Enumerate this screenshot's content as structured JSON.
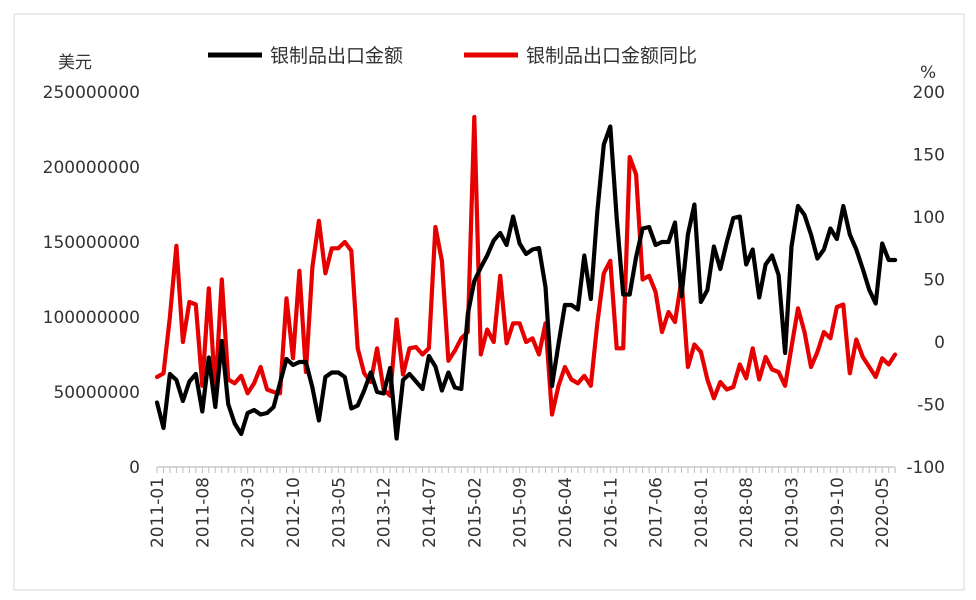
{
  "chart_data": {
    "type": "line",
    "legend": {
      "position": "top",
      "entries": [
        "银制品出口金额",
        "银制品出口金额同比"
      ]
    },
    "y_left": {
      "unit": "美元",
      "range": [
        0,
        250000000
      ],
      "ticks": [
        "250000000",
        "200000000",
        "150000000",
        "100000000",
        "50000000",
        "0"
      ]
    },
    "y_right": {
      "unit": "%",
      "range": [
        -100,
        200
      ],
      "ticks": [
        "200",
        "150",
        "100",
        "50",
        "0",
        "-50",
        "-100"
      ]
    },
    "x_tick_labels": [
      "2011-01",
      "2011-08",
      "2012-03",
      "2012-10",
      "2013-05",
      "2013-12",
      "2014-07",
      "2015-02",
      "2015-09",
      "2016-04",
      "2016-11",
      "2017-06",
      "2018-01",
      "2018-08",
      "2019-03",
      "2019-10",
      "2020-05"
    ],
    "grid": false,
    "series": [
      {
        "name": "银制品出口金额",
        "axis": "left",
        "color": "#000000",
        "values": [
          43000000,
          26000000,
          62000000,
          58000000,
          44000000,
          57000000,
          62000000,
          37000000,
          73000000,
          40000000,
          84000000,
          42000000,
          29000000,
          22000000,
          36000000,
          38000000,
          35000000,
          36000000,
          40000000,
          56000000,
          72000000,
          68000000,
          70000000,
          70000000,
          53000000,
          31000000,
          60000000,
          63000000,
          63000000,
          60000000,
          39000000,
          41000000,
          51000000,
          63000000,
          50000000,
          49000000,
          66000000,
          19000000,
          58000000,
          62000000,
          57000000,
          52000000,
          74000000,
          67000000,
          51000000,
          63000000,
          53000000,
          52000000,
          102000000,
          124000000,
          133000000,
          141000000,
          151000000,
          156000000,
          148000000,
          167000000,
          149000000,
          142000000,
          145000000,
          146000000,
          120000000,
          54000000,
          82000000,
          108000000,
          108000000,
          105000000,
          141000000,
          112000000,
          170000000,
          215000000,
          227000000,
          166000000,
          115000000,
          115000000,
          140000000,
          159000000,
          160000000,
          148000000,
          150000000,
          150000000,
          163000000,
          114000000,
          155000000,
          175000000,
          110000000,
          118000000,
          147000000,
          132000000,
          150000000,
          166000000,
          167000000,
          135000000,
          145000000,
          113000000,
          135000000,
          141000000,
          128000000,
          76000000,
          147000000,
          174000000,
          168000000,
          155000000,
          139000000,
          145000000,
          159000000,
          152000000,
          174000000,
          155000000,
          145000000,
          132000000,
          118000000,
          109000000,
          149000000,
          138000000,
          138000000
        ]
      },
      {
        "name": "银制品出口金额同比",
        "axis": "right",
        "color": "#e60000",
        "values": [
          -28,
          -25,
          20,
          77,
          0,
          32,
          30,
          -35,
          43,
          -40,
          50,
          -30,
          -33,
          -27,
          -41,
          -33,
          -20,
          -38,
          -40,
          -41,
          35,
          -13,
          57,
          -24,
          60,
          97,
          55,
          75,
          75,
          80,
          73,
          -5,
          -25,
          -32,
          -5,
          -38,
          -43,
          18,
          -26,
          -5,
          -4,
          -10,
          -5,
          92,
          65,
          -15,
          -7,
          3,
          8,
          180,
          -10,
          10,
          0,
          53,
          -1,
          15,
          15,
          0,
          3,
          -10,
          15,
          -58,
          -35,
          -20,
          -30,
          -33,
          -27,
          -35,
          15,
          55,
          65,
          -5,
          -5,
          148,
          134,
          50,
          53,
          40,
          8,
          24,
          16,
          50,
          -20,
          -2,
          -8,
          -30,
          -45,
          -32,
          -38,
          -36,
          -18,
          -29,
          -5,
          -30,
          -12,
          -22,
          -24,
          -35,
          -4,
          27,
          8,
          -20,
          -8,
          8,
          3,
          28,
          30,
          -25,
          2,
          -12,
          -20,
          -28,
          -13,
          -18,
          -10
        ]
      }
    ]
  }
}
